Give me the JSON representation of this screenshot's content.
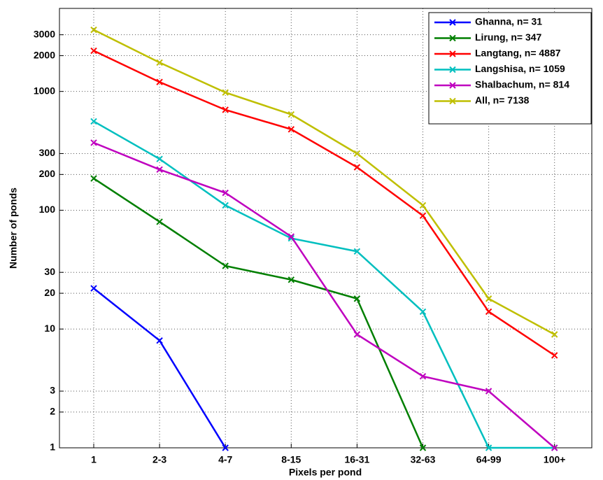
{
  "chart_data": {
    "type": "line",
    "xlabel": "Pixels per pond",
    "ylabel": "Number of ponds",
    "categories": [
      "1",
      "2-3",
      "4-7",
      "8-15",
      "16-31",
      "32-63",
      "64-99",
      "100+"
    ],
    "series": [
      {
        "name": "Ghanna, n= 31",
        "color": "#0000ff",
        "values": [
          22,
          8,
          1,
          null,
          null,
          null,
          null,
          null
        ]
      },
      {
        "name": "Lirung, n= 347",
        "color": "#007f00",
        "values": [
          185,
          80,
          34,
          26,
          18,
          1,
          null,
          null
        ]
      },
      {
        "name": "Langtang, n= 4887",
        "color": "#ff0000",
        "values": [
          2200,
          1200,
          700,
          480,
          230,
          90,
          14,
          6
        ]
      },
      {
        "name": "Langshisa, n= 1059",
        "color": "#00bfbf",
        "values": [
          560,
          270,
          110,
          58,
          45,
          14,
          1,
          1
        ]
      },
      {
        "name": "Shalbachum, n= 814",
        "color": "#bf00bf",
        "values": [
          370,
          220,
          140,
          60,
          9,
          4,
          3,
          1
        ]
      },
      {
        "name": "All, n= 7138",
        "color": "#bfbf00",
        "values": [
          3300,
          1750,
          980,
          640,
          300,
          110,
          18,
          9
        ]
      }
    ],
    "ylim": [
      1,
      5000
    ],
    "yscale": "log",
    "yticks": [
      1,
      2,
      3,
      10,
      20,
      30,
      100,
      200,
      300,
      1000,
      2000,
      3000
    ],
    "grid": true,
    "legend": "upper right"
  }
}
